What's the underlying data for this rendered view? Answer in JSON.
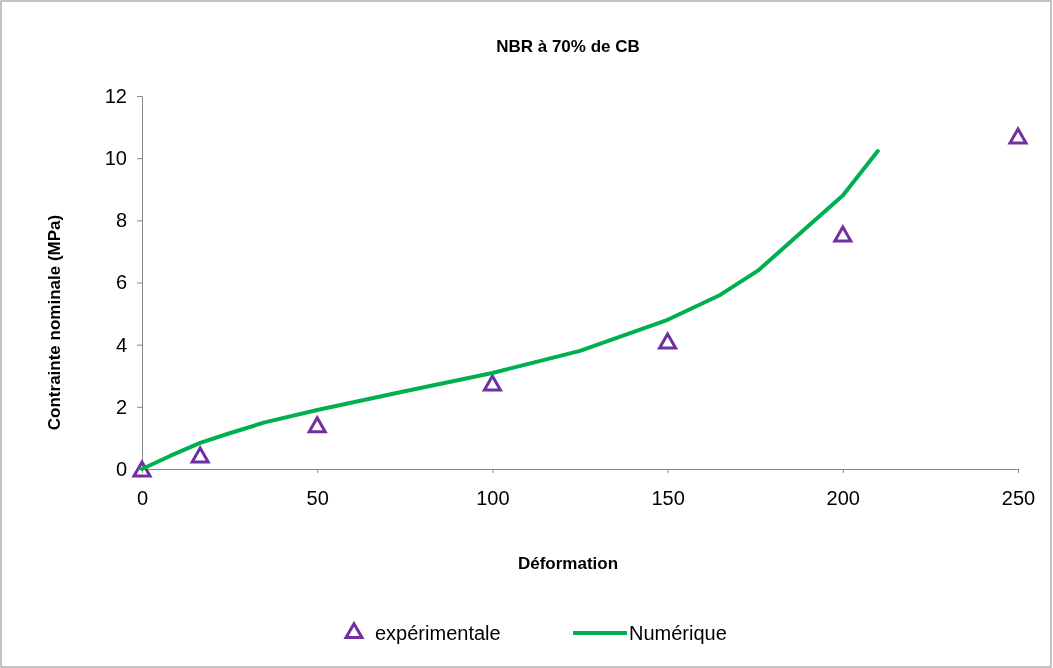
{
  "chart_data": {
    "type": "scatter",
    "title": "NBR à 70% de CB",
    "xlabel": "Déformation",
    "ylabel": "Contrainte nominale (MPa)",
    "xlim": [
      0,
      250
    ],
    "xticks": [
      0,
      50,
      100,
      150,
      200,
      250
    ],
    "ylim": [
      0,
      12
    ],
    "yticks": [
      0,
      2,
      4,
      6,
      8,
      10,
      12
    ],
    "grid": false,
    "legend": "bottom",
    "series": [
      {
        "name": "expérimentale",
        "type": "scatter",
        "marker": "triangle",
        "color": "#7030a0",
        "x": [
          0,
          16.6,
          50,
          100,
          150,
          200,
          250
        ],
        "values": [
          0,
          0.45,
          1.42,
          2.77,
          4.12,
          7.56,
          10.71
        ]
      },
      {
        "name": "Numérique",
        "type": "line",
        "marker": "none",
        "line_style": "solid",
        "color": "#00b050",
        "x": [
          0,
          8,
          16.6,
          25,
          35,
          50,
          75,
          100,
          125,
          150,
          165,
          176,
          190,
          200,
          210
        ],
        "values": [
          0,
          0.42,
          0.84,
          1.15,
          1.5,
          1.9,
          2.5,
          3.09,
          3.8,
          4.8,
          5.6,
          6.4,
          7.8,
          8.8,
          10.23
        ]
      }
    ]
  }
}
